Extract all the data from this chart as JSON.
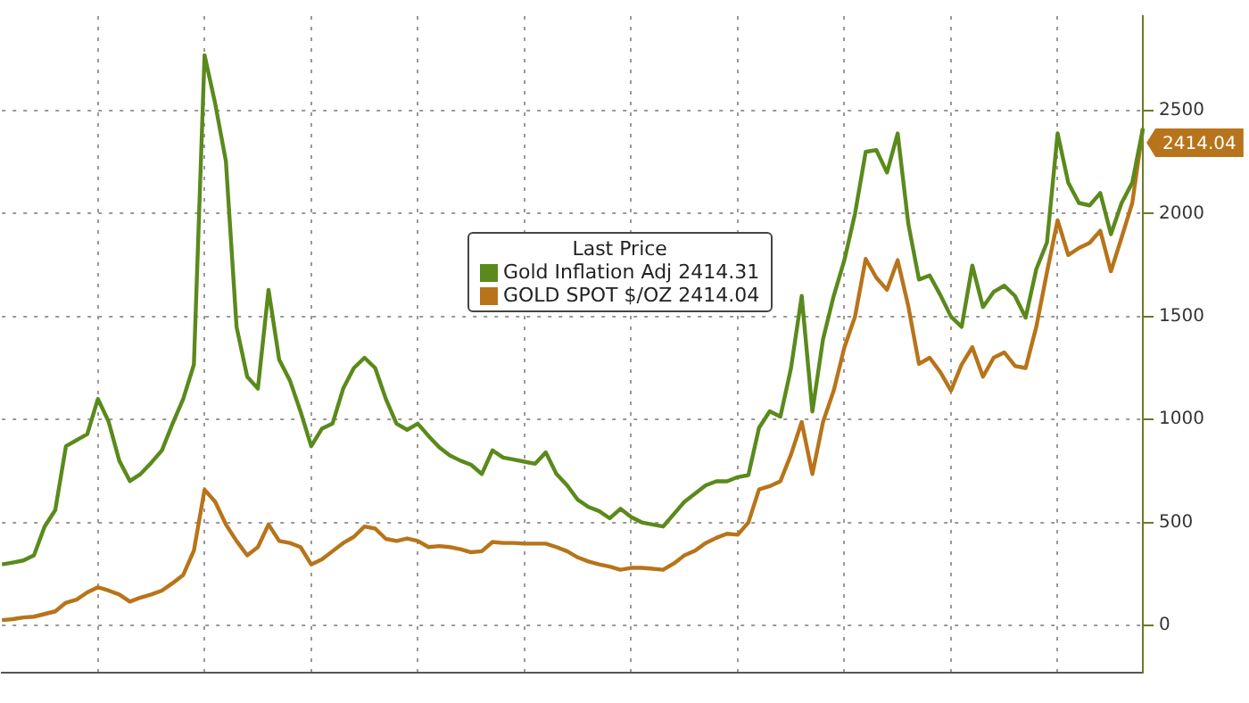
{
  "chart_data": {
    "type": "line",
    "legend_title": "Last Price",
    "legend": "top",
    "grid": true,
    "tick_labels": "y",
    "marker": "none",
    "line_style": "solid",
    "categories": [
      null,
      null,
      null,
      null,
      null,
      null,
      null,
      null,
      null,
      null,
      null,
      null,
      null,
      null,
      null,
      null,
      null,
      null,
      null,
      null,
      null,
      null,
      null,
      null,
      null,
      null,
      null,
      null,
      null,
      null,
      null,
      null,
      null,
      null,
      null,
      null,
      null,
      null,
      null,
      null,
      null,
      null,
      null,
      null,
      null,
      null,
      null,
      null,
      null,
      null,
      null,
      null,
      null,
      null,
      null,
      null,
      null,
      null,
      null,
      null,
      null,
      null,
      null,
      null,
      null,
      null,
      null,
      null,
      null,
      null,
      null,
      null,
      null,
      null,
      null,
      null,
      null,
      null,
      null,
      null,
      null,
      null,
      null,
      null,
      null,
      null,
      null,
      null,
      null,
      null,
      null,
      null,
      null,
      null,
      null,
      null,
      null,
      null,
      null,
      null,
      null,
      null,
      null,
      null,
      null,
      null,
      null,
      null
    ],
    "ylim": [
      -230,
      2960
    ],
    "yticks": [
      0,
      500,
      1000,
      1500,
      2000,
      2500
    ],
    "series": [
      {
        "name": "Gold Inflation Adj 2414.31",
        "color": "#5a8a1c",
        "values": [
          296,
          305,
          315,
          340,
          480,
          560,
          870,
          900,
          929,
          1100,
          990,
          800,
          701,
          735,
          790,
          850,
          980,
          1100,
          1267,
          2770,
          2534,
          2255,
          1450,
          1208,
          1150,
          1630,
          1290,
          1190,
          1039,
          870,
          955,
          980,
          1150,
          1250,
          1300,
          1250,
          1100,
          980,
          950,
          980,
          920,
          865,
          825,
          800,
          780,
          735,
          850,
          815,
          805,
          795,
          785,
          840,
          735,
          680,
          610,
          575,
          555,
          520,
          566,
          526,
          500,
          490,
          480,
          540,
          600,
          640,
          680,
          700,
          700,
          720,
          730,
          960,
          1040,
          1014,
          1250,
          1600,
          1039,
          1390,
          1600,
          1774,
          2000,
          2300,
          2309,
          2200,
          2390,
          1950,
          1680,
          1700,
          1605,
          1500,
          1450,
          1748,
          1546,
          1620,
          1650,
          1600,
          1495,
          1730,
          1860,
          2390,
          2150,
          2052,
          2040,
          2100,
          1900,
          2052,
          2150,
          2414.31
        ]
      },
      {
        "name": "GOLD SPOT $/OZ 2414.04",
        "color": "#b8741a",
        "values": [
          25,
          30,
          38,
          42,
          55,
          68,
          110,
          125,
          160,
          185,
          169,
          150,
          115,
          135,
          150,
          169,
          205,
          245,
          363,
          659,
          600,
          490,
          410,
          340,
          380,
          490,
          410,
          400,
          380,
          296,
          320,
          360,
          400,
          430,
          480,
          470,
          420,
          410,
          422,
          410,
          380,
          385,
          380,
          370,
          355,
          360,
          405,
          400,
          400,
          397,
          397,
          397,
          380,
          360,
          330,
          310,
          296,
          285,
          270,
          279,
          279,
          275,
          270,
          300,
          340,
          363,
          400,
          425,
          445,
          440,
          500,
          660,
          676,
          700,
          830,
          988,
          735,
          988,
          1140,
          1350,
          1500,
          1780,
          1689,
          1630,
          1774,
          1550,
          1270,
          1300,
          1230,
          1140,
          1267,
          1351,
          1208,
          1300,
          1326,
          1260,
          1250,
          1450,
          1715,
          1968,
          1799,
          1833,
          1858,
          1917,
          1720,
          1884,
          2052,
          2414.04
        ]
      }
    ],
    "annotations": [
      "2414.04"
    ]
  }
}
